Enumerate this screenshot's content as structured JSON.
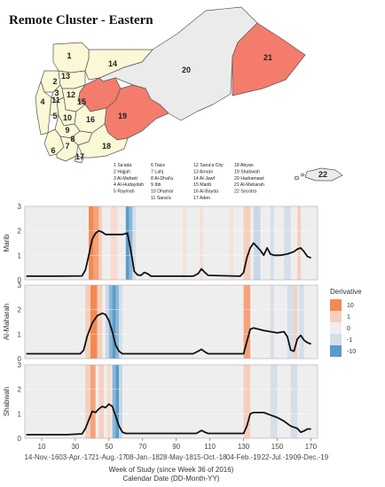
{
  "map": {
    "title": "Remote Cluster - Eastern",
    "region_labels": [
      "1",
      "2",
      "3",
      "4",
      "5",
      "6",
      "7",
      "8",
      "9",
      "10",
      "11",
      "12",
      "13",
      "14",
      "15",
      "16",
      "17",
      "18",
      "19",
      "20",
      "21",
      "22"
    ],
    "legend_col1": [
      "1 Sa'ada",
      "2 Hajjah",
      "3 Al-Mahwit",
      "4 Al-Hudaydah",
      "5 Raymah"
    ],
    "legend_col2": [
      "6 Taizz",
      "7 Lahj",
      "8  Al-Dhal'a",
      "9  Ibb",
      "10 Dhamar",
      "11 Sana'a"
    ],
    "legend_col3": [
      "12 Sana'a City",
      "13 Amran",
      "14 Al-Jawf",
      "15 Marib",
      "16 Al-Bayda",
      "17 Aden"
    ],
    "legend_col4": [
      "18 Abyan",
      "19 Shabwah",
      "20 Hadramawt",
      "21 Al-Maharah",
      "22 Socotra"
    ],
    "colors": {
      "highlight": "#F47C6C",
      "cluster": "#FBF8D6",
      "other": "#EBEBEC",
      "border": "#555555"
    }
  },
  "chart_data": {
    "type": "line",
    "xlabel": "Week of Study (since Week 36 of 2016)",
    "xlabel2": "Calendar Date (DD-Month-YY)",
    "xlim": [
      0,
      174
    ],
    "x_ticks": [
      10,
      30,
      50,
      70,
      90,
      110,
      130,
      150,
      170
    ],
    "date_ticks": [
      {
        "week": 10,
        "label": "14-Nov.-16"
      },
      {
        "week": 30,
        "label": "03-Apr.-17"
      },
      {
        "week": 50,
        "label": "21-Aug.-17"
      },
      {
        "week": 70,
        "label": "08-Jan.-18"
      },
      {
        "week": 90,
        "label": "28-May-18"
      },
      {
        "week": 110,
        "label": "15-Oct.-18"
      },
      {
        "week": 130,
        "label": "04-Feb.-19"
      },
      {
        "week": 150,
        "label": "22-Jul.-19"
      },
      {
        "week": 170,
        "label": "09-Dec.-19"
      }
    ],
    "ylim": [
      0,
      3
    ],
    "y_ticks": [
      0,
      1,
      2,
      3
    ],
    "legend": {
      "title": "Derivative",
      "ticks": [
        "10",
        "1",
        "0",
        "-1",
        "-10"
      ],
      "colors": [
        "#F28A52",
        "#F6CFBC",
        "#EEEEEE",
        "#D5DFEA",
        "#5A9BC8"
      ]
    },
    "series": [
      {
        "name": "Marib",
        "points": [
          [
            1,
            0.15
          ],
          [
            20,
            0.15
          ],
          [
            34,
            0.16
          ],
          [
            36,
            0.4
          ],
          [
            38,
            1.0
          ],
          [
            40,
            1.65
          ],
          [
            42,
            1.9
          ],
          [
            44,
            2.0
          ],
          [
            46,
            1.95
          ],
          [
            48,
            1.85
          ],
          [
            52,
            1.85
          ],
          [
            58,
            1.85
          ],
          [
            61,
            1.9
          ],
          [
            63,
            1.2
          ],
          [
            65,
            0.35
          ],
          [
            67,
            0.2
          ],
          [
            69,
            0.18
          ],
          [
            71,
            0.3
          ],
          [
            73,
            0.25
          ],
          [
            75,
            0.15
          ],
          [
            100,
            0.15
          ],
          [
            103,
            0.25
          ],
          [
            105,
            0.45
          ],
          [
            107,
            0.3
          ],
          [
            109,
            0.18
          ],
          [
            128,
            0.15
          ],
          [
            130,
            0.3
          ],
          [
            132,
            0.9
          ],
          [
            134,
            1.3
          ],
          [
            136,
            1.5
          ],
          [
            138,
            1.35
          ],
          [
            140,
            1.2
          ],
          [
            142,
            1.0
          ],
          [
            144,
            1.3
          ],
          [
            146,
            1.05
          ],
          [
            148,
            1.0
          ],
          [
            152,
            1.0
          ],
          [
            156,
            1.05
          ],
          [
            160,
            1.15
          ],
          [
            162,
            1.25
          ],
          [
            164,
            1.3
          ],
          [
            166,
            1.15
          ],
          [
            168,
            0.95
          ],
          [
            170,
            0.9
          ]
        ],
        "deriv_bands": [
          [
            38,
            41,
            "#F28A52"
          ],
          [
            41,
            44,
            "#F4A27A"
          ],
          [
            44,
            46,
            "#F6CFBC"
          ],
          [
            51,
            55,
            "#F8DBCD"
          ],
          [
            60,
            62,
            "#5A9BC8"
          ],
          [
            62,
            64,
            "#8AB7D8"
          ],
          [
            64,
            66,
            "#D5DFEA"
          ],
          [
            94,
            96,
            "#F6E1D6"
          ],
          [
            104,
            106,
            "#F6E1D6"
          ],
          [
            122,
            124,
            "#F6E1D6"
          ],
          [
            130,
            134,
            "#F6CFBC"
          ],
          [
            136,
            140,
            "#C8D8E7"
          ],
          [
            146,
            148,
            "#D5DFEA"
          ],
          [
            154,
            158,
            "#D5DFEA"
          ],
          [
            162,
            164,
            "#F6CFBC"
          ]
        ]
      },
      {
        "name": "Al-Maharah",
        "points": [
          [
            1,
            0.2
          ],
          [
            25,
            0.2
          ],
          [
            33,
            0.2
          ],
          [
            35,
            0.35
          ],
          [
            37,
            0.9
          ],
          [
            40,
            1.45
          ],
          [
            43,
            1.75
          ],
          [
            46,
            1.85
          ],
          [
            48,
            1.8
          ],
          [
            50,
            1.55
          ],
          [
            52,
            1.1
          ],
          [
            54,
            0.55
          ],
          [
            56,
            0.3
          ],
          [
            58,
            0.2
          ],
          [
            100,
            0.2
          ],
          [
            103,
            0.3
          ],
          [
            105,
            0.38
          ],
          [
            107,
            0.28
          ],
          [
            109,
            0.2
          ],
          [
            130,
            0.2
          ],
          [
            132,
            0.7
          ],
          [
            134,
            1.2
          ],
          [
            136,
            1.25
          ],
          [
            142,
            1.15
          ],
          [
            150,
            1.05
          ],
          [
            154,
            1.1
          ],
          [
            156,
            0.9
          ],
          [
            158,
            0.35
          ],
          [
            160,
            0.3
          ],
          [
            162,
            0.8
          ],
          [
            164,
            0.95
          ],
          [
            166,
            0.75
          ],
          [
            168,
            0.65
          ],
          [
            170,
            0.6
          ]
        ],
        "deriv_bands": [
          [
            36,
            39,
            "#F6CFBC"
          ],
          [
            39,
            43,
            "#F28A52"
          ],
          [
            43,
            46,
            "#F6CFBC"
          ],
          [
            48,
            50,
            "#C8D8E7"
          ],
          [
            50,
            52,
            "#8AB7D8"
          ],
          [
            52,
            54,
            "#5A9BC8"
          ],
          [
            54,
            56,
            "#8AB7D8"
          ],
          [
            56,
            58,
            "#D5DFEA"
          ],
          [
            130,
            134,
            "#F4A27A"
          ],
          [
            146,
            148,
            "#D5DFEA"
          ],
          [
            156,
            160,
            "#D5DFEA"
          ],
          [
            160,
            162,
            "#F6CFBC"
          ],
          [
            163,
            166,
            "#D5DFEA"
          ]
        ]
      },
      {
        "name": "Shabwah",
        "points": [
          [
            1,
            0.15
          ],
          [
            25,
            0.15
          ],
          [
            34,
            0.18
          ],
          [
            36,
            0.4
          ],
          [
            38,
            0.75
          ],
          [
            40,
            1.1
          ],
          [
            42,
            1.05
          ],
          [
            44,
            1.2
          ],
          [
            46,
            1.3
          ],
          [
            48,
            1.25
          ],
          [
            50,
            1.4
          ],
          [
            52,
            1.3
          ],
          [
            54,
            0.9
          ],
          [
            56,
            0.5
          ],
          [
            58,
            0.25
          ],
          [
            60,
            0.2
          ],
          [
            102,
            0.2
          ],
          [
            105,
            0.32
          ],
          [
            107,
            0.25
          ],
          [
            109,
            0.2
          ],
          [
            130,
            0.2
          ],
          [
            132,
            0.5
          ],
          [
            134,
            1.0
          ],
          [
            136,
            1.05
          ],
          [
            142,
            1.05
          ],
          [
            146,
            0.95
          ],
          [
            150,
            0.85
          ],
          [
            154,
            0.7
          ],
          [
            158,
            0.5
          ],
          [
            162,
            0.4
          ],
          [
            164,
            0.25
          ],
          [
            166,
            0.3
          ],
          [
            168,
            0.38
          ],
          [
            170,
            0.38
          ]
        ],
        "deriv_bands": [
          [
            36,
            39,
            "#F6CFBC"
          ],
          [
            39,
            42,
            "#F4A27A"
          ],
          [
            44,
            47,
            "#F6CFBC"
          ],
          [
            49,
            51,
            "#F8DBCD"
          ],
          [
            52,
            54,
            "#8AB7D8"
          ],
          [
            54,
            56,
            "#5A9BC8"
          ],
          [
            56,
            58,
            "#C8D8E7"
          ],
          [
            130,
            134,
            "#F6CFBC"
          ],
          [
            146,
            150,
            "#D5DFEA"
          ],
          [
            158,
            162,
            "#D5DFEA"
          ]
        ]
      }
    ]
  }
}
